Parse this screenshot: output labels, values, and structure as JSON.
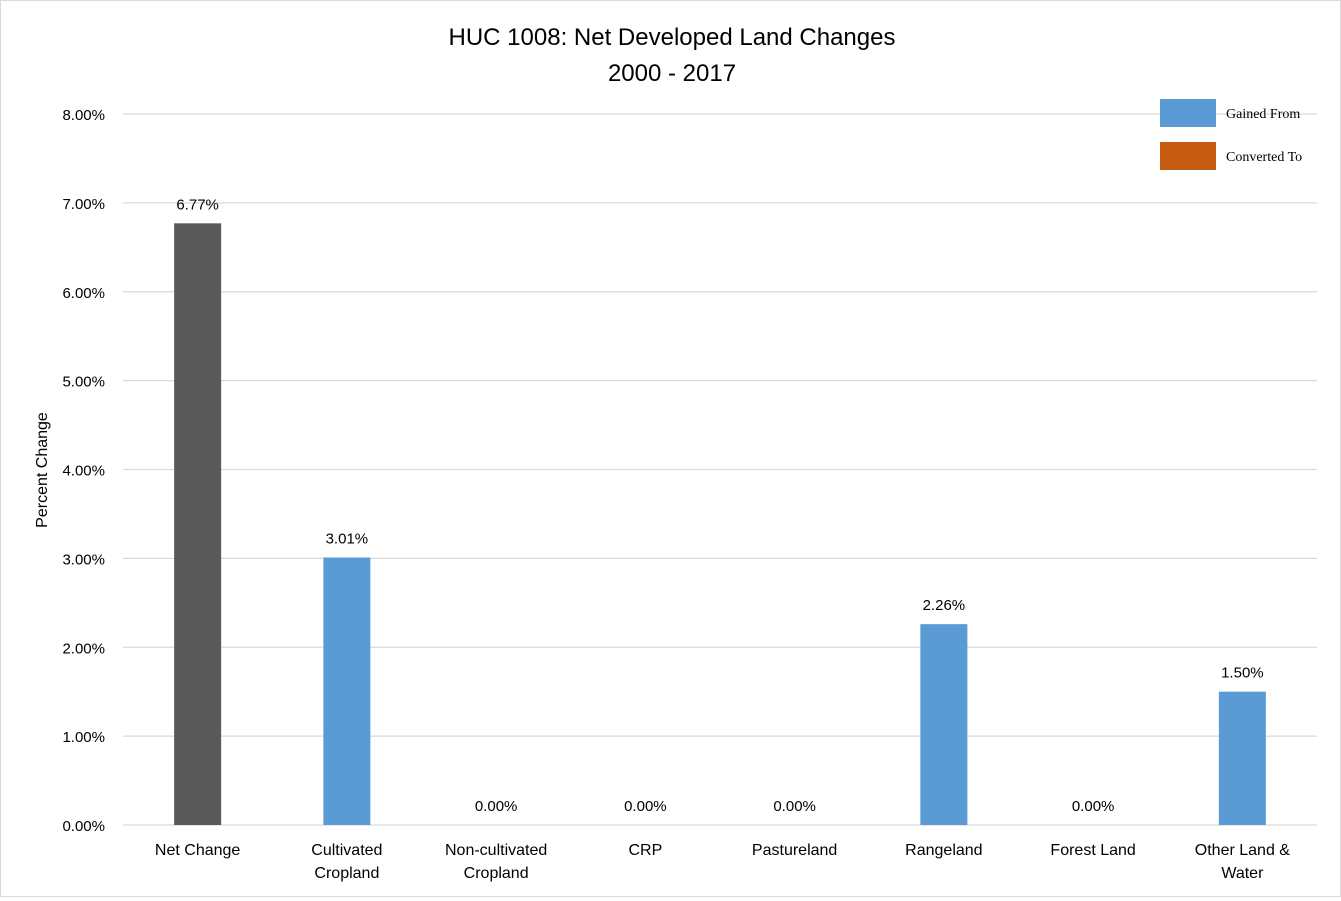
{
  "chart_data": {
    "type": "bar",
    "title": "HUC 1008: Net Developed Land Changes",
    "subtitle": "2000 - 2017",
    "xlabel": "",
    "ylabel": "Percent Change",
    "ylim": [
      0,
      8
    ],
    "y_ticks": [
      "0.00%",
      "1.00%",
      "2.00%",
      "3.00%",
      "4.00%",
      "5.00%",
      "6.00%",
      "7.00%",
      "8.00%"
    ],
    "grid": true,
    "legend_position": "top-right",
    "categories": [
      [
        "Net Change"
      ],
      [
        "Cultivated",
        "Cropland"
      ],
      [
        "Non-cultivated",
        "Cropland"
      ],
      [
        "CRP"
      ],
      [
        "Pastureland"
      ],
      [
        "Rangeland"
      ],
      [
        "Forest Land"
      ],
      [
        "Other Land &",
        "Water"
      ]
    ],
    "values": [
      6.77,
      3.01,
      0.0,
      0.0,
      0.0,
      2.26,
      0.0,
      1.5
    ],
    "data_labels": [
      "6.77%",
      "3.01%",
      "0.00%",
      "0.00%",
      "0.00%",
      "2.26%",
      "0.00%",
      "1.50%"
    ],
    "bar_series": [
      "net",
      "gained",
      "gained",
      "gained",
      "gained",
      "gained",
      "gained",
      "gained"
    ],
    "legend": [
      {
        "key": "gained",
        "label": "Gained From",
        "color": "#5b9bd5"
      },
      {
        "key": "converted",
        "label": "Converted To",
        "color": "#c55a11"
      }
    ],
    "colors": {
      "net": "#595959",
      "gained": "#5b9bd5",
      "converted": "#c55a11",
      "grid": "#d9d9d9"
    }
  }
}
